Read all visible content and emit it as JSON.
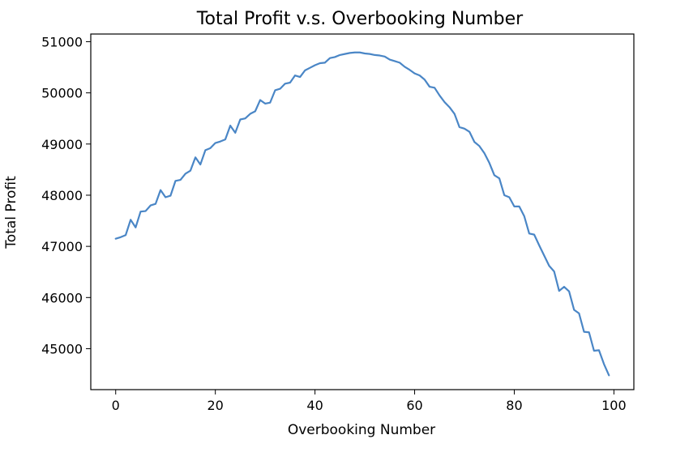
{
  "chart_data": {
    "type": "line",
    "title": "Total Profit v.s. Overbooking Number",
    "xlabel": "Overbooking Number",
    "ylabel": "Total Profit",
    "xlim": [
      -5,
      104
    ],
    "ylim": [
      44200,
      51150
    ],
    "xticks": [
      0,
      20,
      40,
      60,
      80,
      100
    ],
    "yticks": [
      45000,
      46000,
      47000,
      48000,
      49000,
      50000,
      51000
    ],
    "xtick_labels": [
      "0",
      "20",
      "40",
      "60",
      "80",
      "100"
    ],
    "ytick_labels": [
      "45000",
      "46000",
      "47000",
      "48000",
      "49000",
      "50000",
      "51000"
    ],
    "grid": false,
    "line_color": "#4a86c6",
    "series": [
      {
        "x": [
          0,
          1,
          2,
          3,
          4,
          5,
          6,
          7,
          8,
          9,
          10,
          11,
          12,
          13,
          14,
          15,
          16,
          17,
          18,
          19,
          20,
          21,
          22,
          23,
          24,
          25,
          26,
          27,
          28,
          29,
          30,
          31,
          32,
          33,
          34,
          35,
          36,
          37,
          38,
          39,
          40,
          41,
          42,
          43,
          44,
          45,
          46,
          47,
          48,
          49,
          50,
          51,
          52,
          53,
          54,
          55,
          56,
          57,
          58,
          59,
          60,
          61,
          62,
          63,
          64,
          65,
          66,
          67,
          68,
          69,
          70,
          71,
          72,
          73,
          74,
          75,
          76,
          77,
          78,
          79,
          80,
          81,
          82,
          83,
          84,
          85,
          86,
          87,
          88,
          89,
          90,
          91,
          92,
          93,
          94,
          95,
          96,
          97,
          98,
          99
        ],
        "y": [
          47150,
          47180,
          47220,
          47520,
          47370,
          47680,
          47690,
          47800,
          47830,
          48100,
          47960,
          47990,
          48280,
          48300,
          48420,
          48480,
          48740,
          48600,
          48880,
          48920,
          49020,
          49050,
          49090,
          49360,
          49220,
          49480,
          49500,
          49590,
          49640,
          49860,
          49790,
          49810,
          50050,
          50080,
          50180,
          50200,
          50340,
          50310,
          50440,
          50490,
          50540,
          50580,
          50590,
          50680,
          50700,
          50740,
          50760,
          50780,
          50790,
          50790,
          50770,
          50760,
          50740,
          50730,
          50710,
          50650,
          50620,
          50590,
          50510,
          50450,
          50380,
          50340,
          50260,
          50120,
          50100,
          49950,
          49820,
          49720,
          49590,
          49330,
          49300,
          49240,
          49040,
          48960,
          48820,
          48630,
          48390,
          48330,
          48000,
          47960,
          47780,
          47780,
          47590,
          47250,
          47230,
          47020,
          46820,
          46620,
          46510,
          46130,
          46210,
          46120,
          45760,
          45690,
          45330,
          45320,
          44960,
          44970,
          44700,
          44480
        ]
      }
    ]
  }
}
